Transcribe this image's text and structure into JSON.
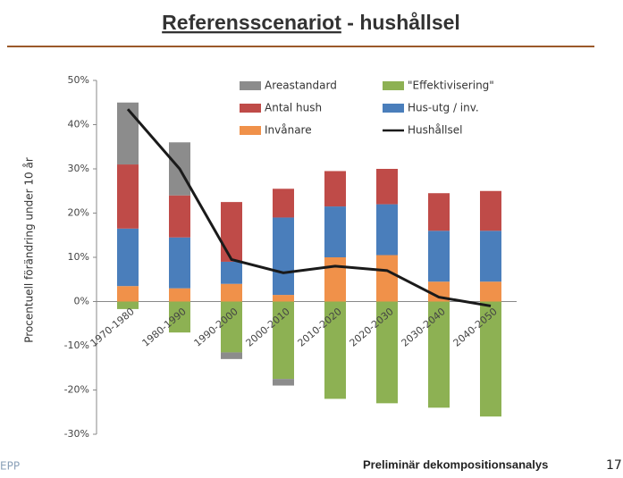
{
  "header": {
    "title_underlined": "Referensscenariot",
    "title_rest": " - hushållsel"
  },
  "chart_data": {
    "type": "bar",
    "stacked": true,
    "y_label": "Procentuell förändring under 10 år",
    "categories": [
      "1970-1980",
      "1980-1990",
      "1990-2000",
      "2000-2010",
      "2010-2020",
      "2020-2030",
      "2030-2040",
      "2040-2050"
    ],
    "series": [
      {
        "name": "Areastandard",
        "color": "#8c8c8c",
        "values": [
          14,
          12,
          -1.5,
          -1.5,
          0,
          0,
          0,
          0
        ]
      },
      {
        "name": "\"Effektivisering\"",
        "color": "#8db153",
        "values": [
          -1.7,
          -7,
          -11.5,
          -17.5,
          -22,
          -23,
          -24,
          -26
        ]
      },
      {
        "name": "Antal hush",
        "color": "#bf4b48",
        "values": [
          14.5,
          9.5,
          13.5,
          6.5,
          8,
          8,
          8.5,
          9
        ]
      },
      {
        "name": "Hus-utg / inv.",
        "color": "#4a7ebb",
        "values": [
          13,
          11.5,
          5,
          17.5,
          11.5,
          11.5,
          11.5,
          11.5
        ]
      },
      {
        "name": "Invånare",
        "color": "#f0914a",
        "values": [
          3.5,
          3,
          4,
          1.5,
          10,
          10.5,
          4.5,
          4.5
        ]
      },
      {
        "name": "Hushållsel",
        "color": "#1a1a1a",
        "type": "line",
        "values": [
          43.5,
          30,
          9.5,
          6.5,
          8,
          7,
          1,
          -1
        ]
      }
    ],
    "ylim": [
      -30,
      50
    ],
    "yticks": [
      {
        "value": -30,
        "label": "-30%"
      },
      {
        "value": -20,
        "label": "-20%"
      },
      {
        "value": -10,
        "label": "-10%"
      },
      {
        "value": 0,
        "label": "0%"
      },
      {
        "value": 10,
        "label": "10%"
      },
      {
        "value": 20,
        "label": "20%"
      },
      {
        "value": 30,
        "label": "30%"
      },
      {
        "value": 40,
        "label": "40%"
      },
      {
        "value": 50,
        "label": "50%"
      }
    ],
    "grid": false,
    "legend": "top"
  },
  "footer": {
    "logo": "EPP",
    "text": "Preliminär dekompositionsanalys",
    "page": "17"
  }
}
